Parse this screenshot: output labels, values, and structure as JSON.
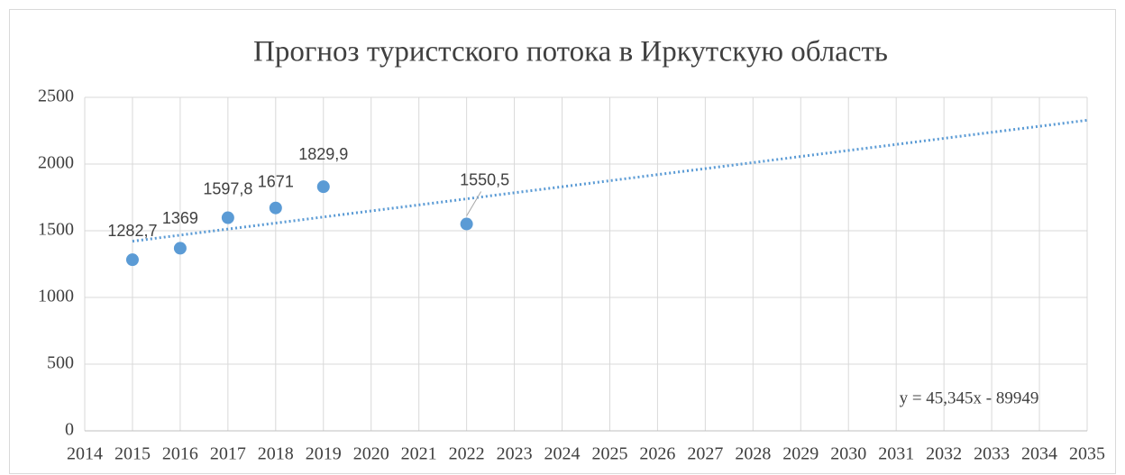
{
  "chart_data": {
    "type": "scatter",
    "title": "Прогноз туристского потока в Иркутскую область",
    "x": [
      2015,
      2016,
      2017,
      2018,
      2019,
      2022
    ],
    "values": [
      1282.7,
      1369,
      1597.8,
      1671,
      1829.9,
      1550.5
    ],
    "value_labels": [
      "1282,7",
      "1369",
      "1597,8",
      "1671",
      "1829,9",
      "1550,5"
    ],
    "color": "#5b9bd5",
    "trendline": {
      "type": "linear",
      "equation": "y = 45,345x - 89949"
    },
    "xlim": [
      2014,
      2035
    ],
    "xticks": [
      2014,
      2015,
      2016,
      2017,
      2018,
      2019,
      2020,
      2021,
      2022,
      2023,
      2024,
      2025,
      2026,
      2027,
      2028,
      2029,
      2030,
      2031,
      2032,
      2033,
      2034,
      2035
    ],
    "ylim": [
      0,
      2500
    ],
    "yticks": [
      0,
      500,
      1000,
      1500,
      2000,
      2500
    ],
    "grid": true
  }
}
